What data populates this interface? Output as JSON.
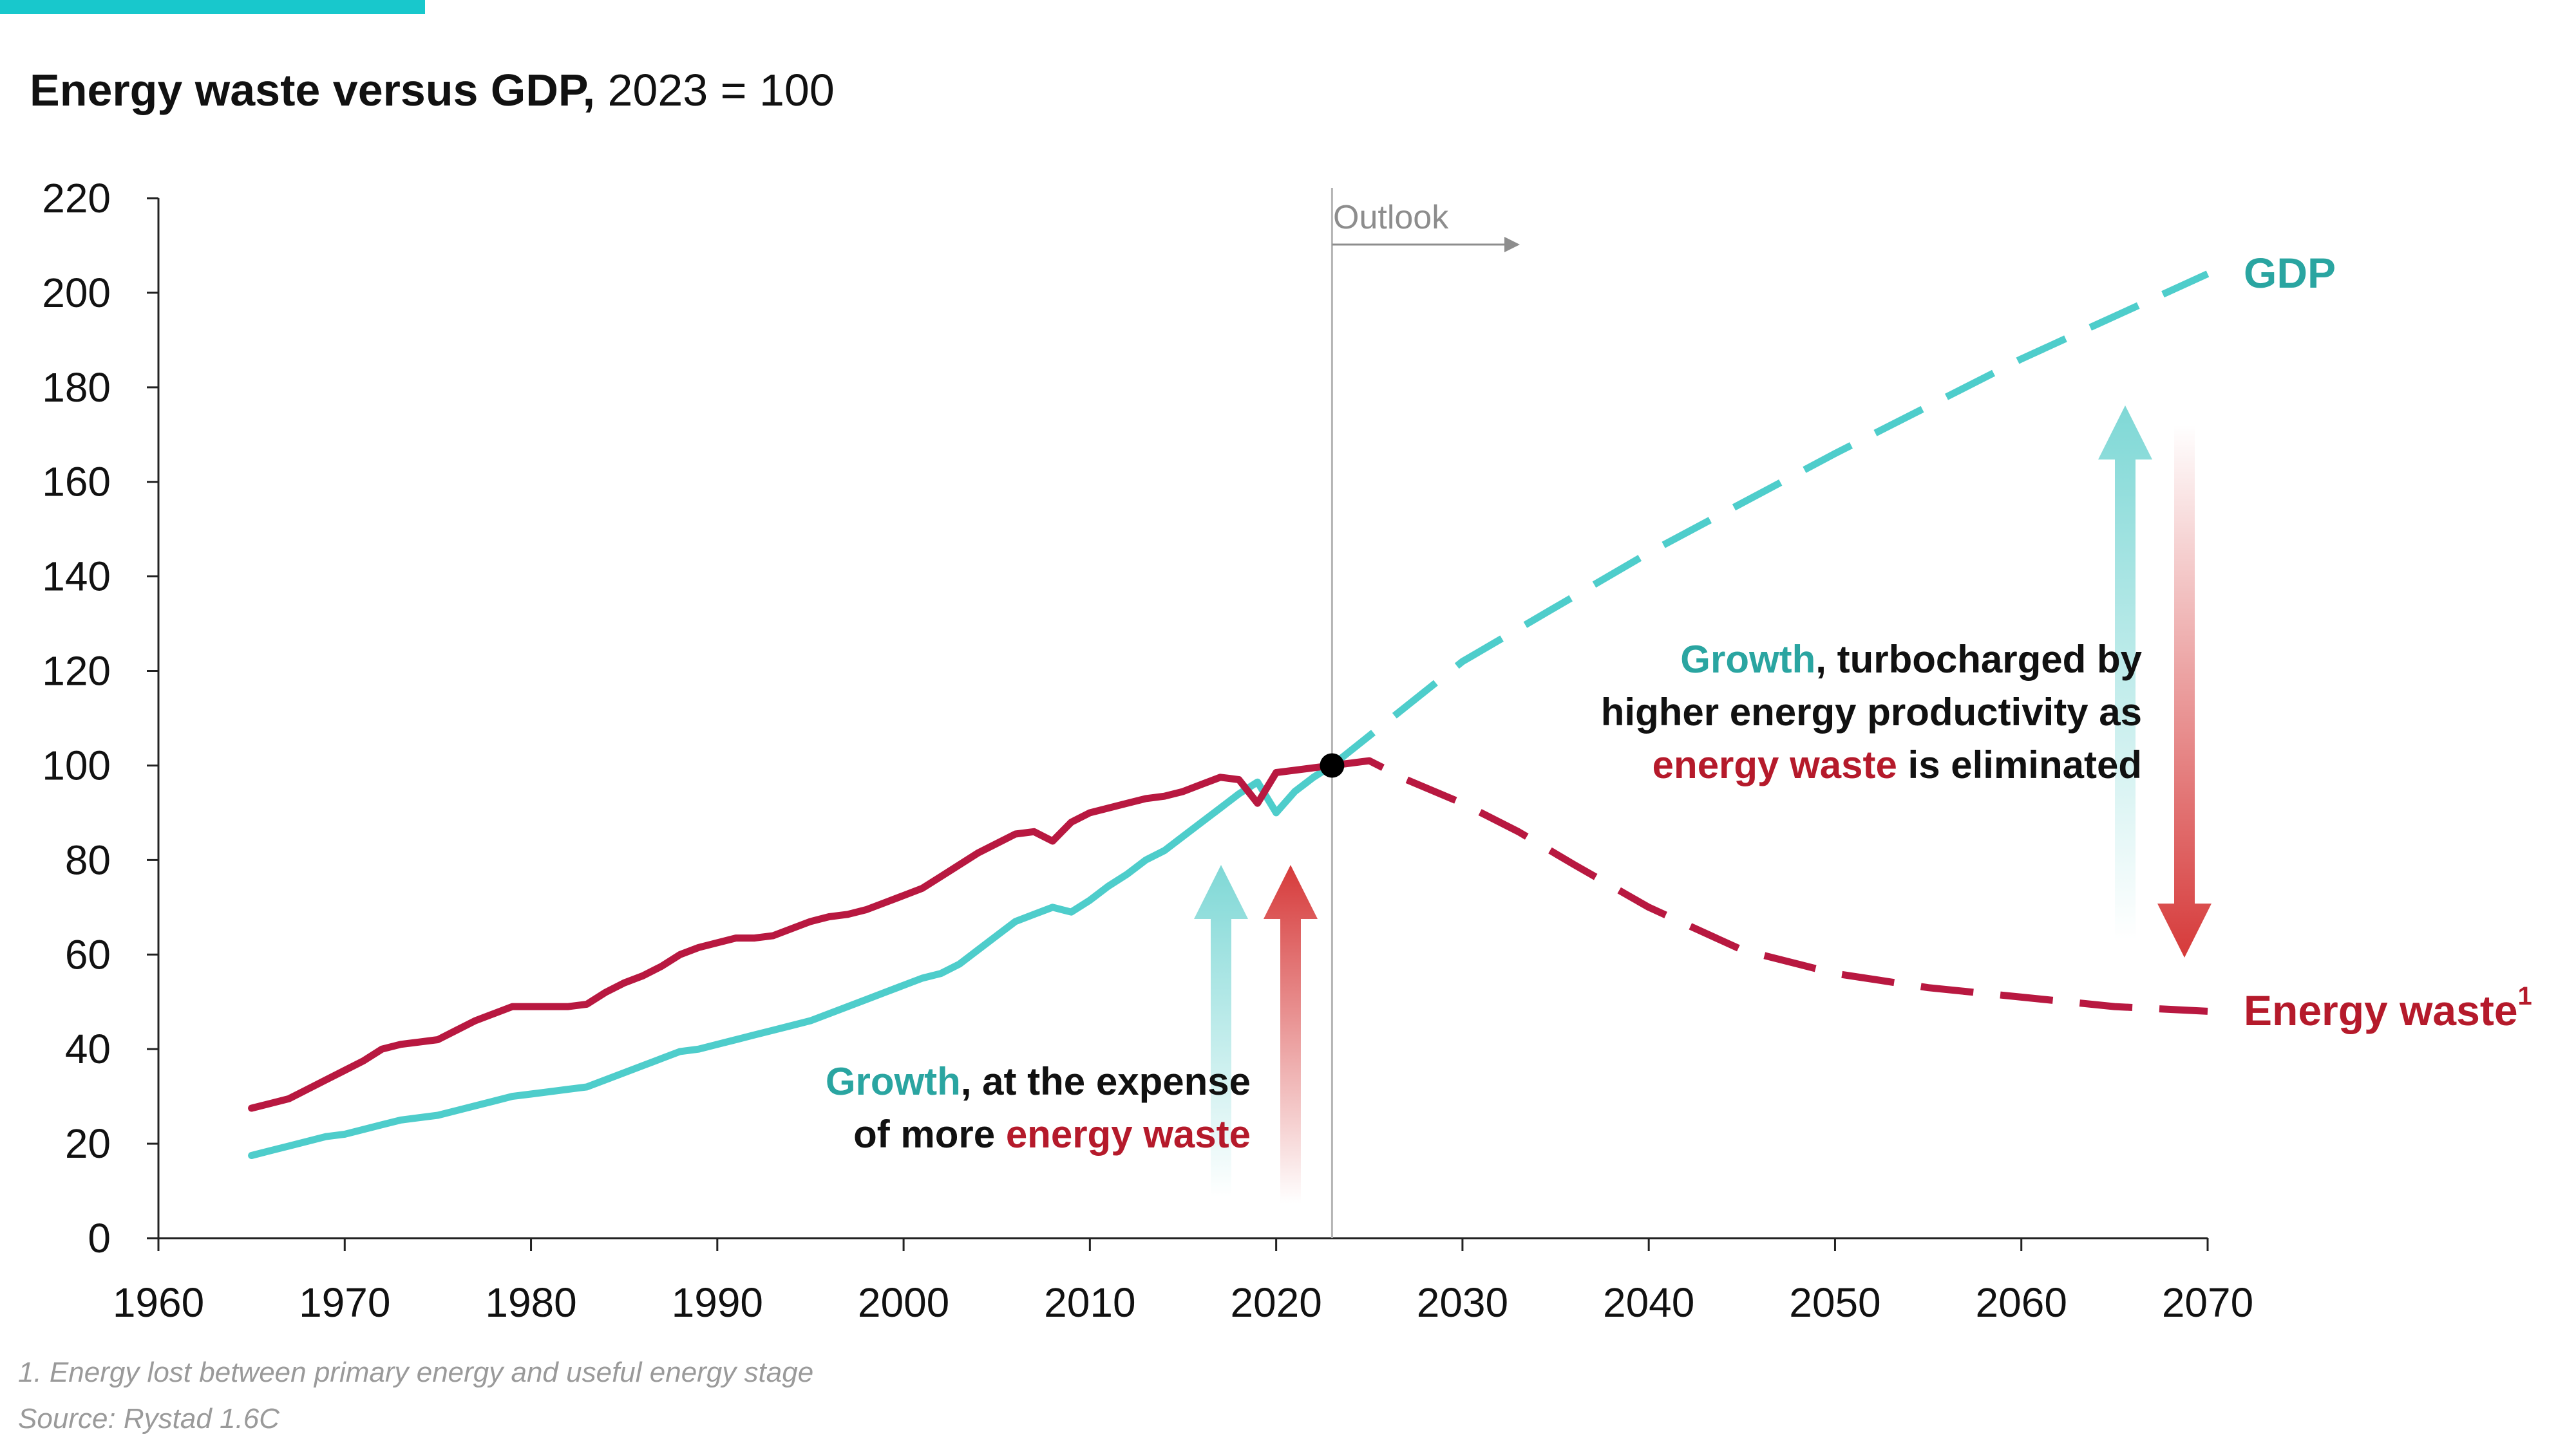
{
  "title": {
    "bold": "Energy waste versus GDP,",
    "normal": "2023 = 100"
  },
  "colors": {
    "gdp": "#4ECDCB",
    "waste": "#B81840",
    "accent": "#18C8CC",
    "teal_text": "#2AA5A1",
    "red_text": "#B51A2B",
    "arrow_red": "#D63A3A",
    "arrow_teal": "#7FD8D6"
  },
  "outlook_label": "Outlook",
  "annotations": {
    "left": {
      "line1_colored": "Growth",
      "line1_rest": ", at the expense",
      "line2_rest": "of more ",
      "line2_colored": "energy waste"
    },
    "right": {
      "line1_colored": "Growth",
      "line1_rest": ", turbocharged by",
      "line2": "higher energy productivity as",
      "line3_colored": "energy waste",
      "line3_rest": " is eliminated"
    }
  },
  "footnotes": {
    "note": "1. Energy lost between primary energy and useful energy stage",
    "source": "Source: Rystad 1.6C"
  },
  "chart_data": {
    "type": "line",
    "xlim": [
      1960,
      2070
    ],
    "ylim": [
      0,
      220
    ],
    "x_ticks": [
      1960,
      1970,
      1980,
      1990,
      2000,
      2010,
      2020,
      2030,
      2040,
      2050,
      2060,
      2070
    ],
    "y_ticks": [
      0,
      20,
      40,
      60,
      80,
      100,
      120,
      140,
      160,
      180,
      200,
      220
    ],
    "outlook_start": 2023,
    "marker": {
      "x": 2023,
      "y": 100
    },
    "series": [
      {
        "name": "GDP",
        "color": "#4ECDCB",
        "historical": {
          "x": [
            1965,
            1966,
            1967,
            1968,
            1969,
            1970,
            1971,
            1972,
            1973,
            1974,
            1975,
            1976,
            1977,
            1978,
            1979,
            1980,
            1981,
            1982,
            1983,
            1984,
            1985,
            1986,
            1987,
            1988,
            1989,
            1990,
            1991,
            1992,
            1993,
            1994,
            1995,
            1996,
            1997,
            1998,
            1999,
            2000,
            2001,
            2002,
            2003,
            2004,
            2005,
            2006,
            2007,
            2008,
            2009,
            2010,
            2011,
            2012,
            2013,
            2014,
            2015,
            2016,
            2017,
            2018,
            2019,
            2020,
            2021,
            2022,
            2023
          ],
          "y": [
            17.5,
            18.5,
            19.5,
            20.5,
            21.5,
            22,
            23,
            24,
            25,
            25.5,
            26,
            27,
            28,
            29,
            30,
            30.5,
            31,
            31.5,
            32,
            33.5,
            35,
            36.5,
            38,
            39.5,
            40,
            41,
            42,
            43,
            44,
            45,
            46,
            47.5,
            49,
            50.5,
            52,
            53.5,
            55,
            56,
            58,
            61,
            64,
            67,
            68.5,
            70,
            69,
            71.5,
            74.5,
            77,
            80,
            82,
            85,
            88,
            91,
            94,
            96.5,
            90,
            94.5,
            97.5,
            100
          ]
        },
        "outlook": {
          "x": [
            2023,
            2030,
            2040,
            2050,
            2060,
            2070
          ],
          "y": [
            100,
            122,
            145,
            166,
            186,
            204
          ]
        }
      },
      {
        "name": "Energy waste",
        "color": "#B81840",
        "historical": {
          "x": [
            1965,
            1966,
            1967,
            1968,
            1969,
            1970,
            1971,
            1972,
            1973,
            1974,
            1975,
            1976,
            1977,
            1978,
            1979,
            1980,
            1981,
            1982,
            1983,
            1984,
            1985,
            1986,
            1987,
            1988,
            1989,
            1990,
            1991,
            1992,
            1993,
            1994,
            1995,
            1996,
            1997,
            1998,
            1999,
            2000,
            2001,
            2002,
            2003,
            2004,
            2005,
            2006,
            2007,
            2008,
            2009,
            2010,
            2011,
            2012,
            2013,
            2014,
            2015,
            2016,
            2017,
            2018,
            2019,
            2020,
            2021,
            2022,
            2023
          ],
          "y": [
            27.5,
            28.5,
            29.5,
            31.5,
            33.5,
            35.5,
            37.5,
            40,
            41,
            41.5,
            42,
            44,
            46,
            47.5,
            49,
            49,
            49,
            49,
            49.5,
            52,
            54,
            55.5,
            57.5,
            60,
            61.5,
            62.5,
            63.5,
            63.5,
            64,
            65.5,
            67,
            68,
            68.5,
            69.5,
            71,
            72.5,
            74,
            76.5,
            79,
            81.5,
            83.5,
            85.5,
            86,
            84,
            88,
            90,
            91,
            92,
            93,
            93.5,
            94.5,
            96,
            97.5,
            97,
            92,
            98.5,
            99,
            99.5,
            100
          ]
        },
        "outlook": {
          "x": [
            2023,
            2025,
            2027,
            2030,
            2033,
            2036,
            2040,
            2045,
            2050,
            2055,
            2060,
            2065,
            2070
          ],
          "y": [
            100,
            101,
            97,
            92,
            86,
            79,
            70,
            61,
            56,
            53,
            51,
            49,
            48
          ]
        }
      }
    ]
  }
}
